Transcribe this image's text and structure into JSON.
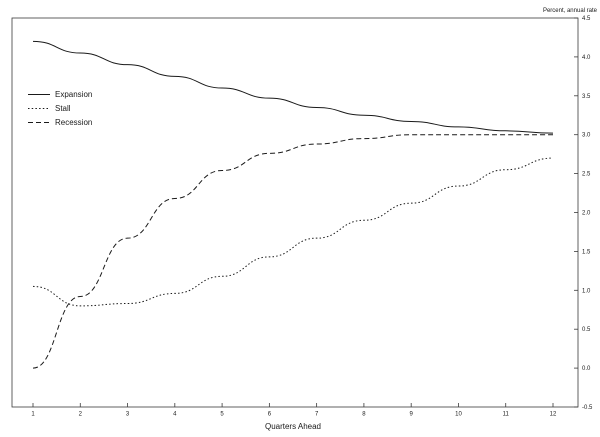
{
  "chart_data": {
    "type": "line",
    "title": "",
    "unit_label": "Percent, annual rate",
    "xlabel": "Quarters Ahead",
    "x": [
      1,
      2,
      3,
      4,
      5,
      6,
      7,
      8,
      9,
      10,
      11,
      12
    ],
    "ylim": [
      -0.5,
      4.5
    ],
    "ytick_step": 0.5,
    "grid": false,
    "legend_position": "upper-left",
    "line_color": "#1a1a1a",
    "series": [
      {
        "name": "Expansion",
        "style": "solid",
        "values": [
          4.2,
          4.05,
          3.9,
          3.75,
          3.6,
          3.47,
          3.35,
          3.25,
          3.17,
          3.1,
          3.05,
          3.02
        ]
      },
      {
        "name": "Stall",
        "style": "dotted",
        "values": [
          1.05,
          0.8,
          0.83,
          0.96,
          1.18,
          1.43,
          1.67,
          1.9,
          2.12,
          2.34,
          2.55,
          2.7
        ]
      },
      {
        "name": "Recession",
        "style": "dashed",
        "values": [
          0.0,
          0.92,
          1.67,
          2.18,
          2.54,
          2.76,
          2.88,
          2.95,
          3.0,
          3.0,
          3.0,
          3.0
        ]
      }
    ]
  }
}
